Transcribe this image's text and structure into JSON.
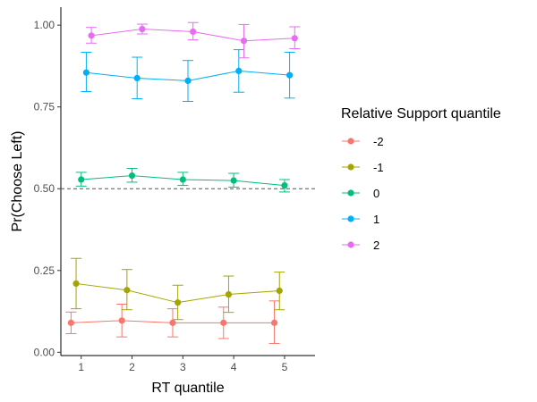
{
  "chart_data": {
    "type": "line",
    "title": "",
    "xlabel": "RT quantile",
    "ylabel": "Pr(Choose Left)",
    "x_ticks": [
      "1",
      "2",
      "3",
      "4",
      "5"
    ],
    "y_ticks": [
      "0.00",
      "0.25",
      "0.50",
      "0.75",
      "1.00"
    ],
    "xlim": [
      0.6,
      5.6
    ],
    "ylim": [
      -0.01,
      1.055
    ],
    "grid": false,
    "reference_line": {
      "y": 0.5,
      "style": "dashed"
    },
    "legend": {
      "title": "Relative Support quantile",
      "position": "right"
    },
    "series": [
      {
        "name": "-2",
        "color": "#F8766D",
        "x": [
          0.8,
          1.8,
          2.8,
          3.8,
          4.8
        ],
        "y": [
          0.09,
          0.097,
          0.09,
          0.09,
          0.09
        ],
        "ymin": [
          0.057,
          0.047,
          0.047,
          0.042,
          0.027
        ],
        "ymax": [
          0.123,
          0.147,
          0.133,
          0.138,
          0.157
        ]
      },
      {
        "name": "-1",
        "color": "#A3A500",
        "x": [
          0.9,
          1.9,
          2.9,
          3.9,
          4.9
        ],
        "y": [
          0.21,
          0.19,
          0.152,
          0.177,
          0.188
        ],
        "ymin": [
          0.133,
          0.13,
          0.1,
          0.122,
          0.13
        ],
        "ymax": [
          0.287,
          0.253,
          0.205,
          0.233,
          0.245
        ]
      },
      {
        "name": "0",
        "color": "#00BF7D",
        "x": [
          1.0,
          2.0,
          3.0,
          4.0,
          5.0
        ],
        "y": [
          0.528,
          0.54,
          0.528,
          0.525,
          0.51
        ],
        "ymin": [
          0.508,
          0.52,
          0.51,
          0.505,
          0.49
        ],
        "ymax": [
          0.55,
          0.562,
          0.55,
          0.547,
          0.528
        ]
      },
      {
        "name": "1",
        "color": "#00B0F6",
        "x": [
          1.1,
          2.1,
          3.1,
          4.1,
          5.1
        ],
        "y": [
          0.855,
          0.838,
          0.83,
          0.86,
          0.847
        ],
        "ymin": [
          0.797,
          0.775,
          0.767,
          0.795,
          0.777
        ],
        "ymax": [
          0.917,
          0.902,
          0.892,
          0.925,
          0.917
        ]
      },
      {
        "name": "2",
        "color": "#E76BF3",
        "x": [
          1.2,
          2.2,
          3.2,
          4.2,
          5.2
        ],
        "y": [
          0.968,
          0.988,
          0.98,
          0.952,
          0.96
        ],
        "ymin": [
          0.945,
          0.973,
          0.955,
          0.9,
          0.928
        ],
        "ymax": [
          0.993,
          1.003,
          1.008,
          1.002,
          0.995
        ]
      }
    ]
  }
}
